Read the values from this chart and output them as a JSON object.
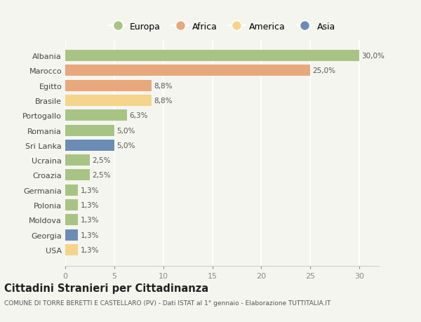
{
  "countries": [
    "Albania",
    "Marocco",
    "Egitto",
    "Brasile",
    "Portogallo",
    "Romania",
    "Sri Lanka",
    "Ucraina",
    "Croazia",
    "Germania",
    "Polonia",
    "Moldova",
    "Georgia",
    "USA"
  ],
  "values": [
    30.0,
    25.0,
    8.8,
    8.8,
    6.3,
    5.0,
    5.0,
    2.5,
    2.5,
    1.3,
    1.3,
    1.3,
    1.3,
    1.3
  ],
  "labels": [
    "30,0%",
    "25,0%",
    "8,8%",
    "8,8%",
    "6,3%",
    "5,0%",
    "5,0%",
    "2,5%",
    "2,5%",
    "1,3%",
    "1,3%",
    "1,3%",
    "1,3%",
    "1,3%"
  ],
  "continents": [
    "Europa",
    "Africa",
    "Africa",
    "America",
    "Europa",
    "Europa",
    "Asia",
    "Europa",
    "Europa",
    "Europa",
    "Europa",
    "Europa",
    "Asia",
    "America"
  ],
  "colors": {
    "Europa": "#a8c485",
    "Africa": "#e8a87c",
    "America": "#f5d48b",
    "Asia": "#6b8db5"
  },
  "legend_order": [
    "Europa",
    "Africa",
    "America",
    "Asia"
  ],
  "xlim": [
    0,
    32
  ],
  "xticks": [
    0,
    5,
    10,
    15,
    20,
    25,
    30
  ],
  "title": "Cittadini Stranieri per Cittadinanza",
  "subtitle": "COMUNE DI TORRE BERETTI E CASTELLARO (PV) - Dati ISTAT al 1° gennaio - Elaborazione TUTTITALIA.IT",
  "background_color": "#f5f5f0",
  "grid_color": "#ffffff"
}
